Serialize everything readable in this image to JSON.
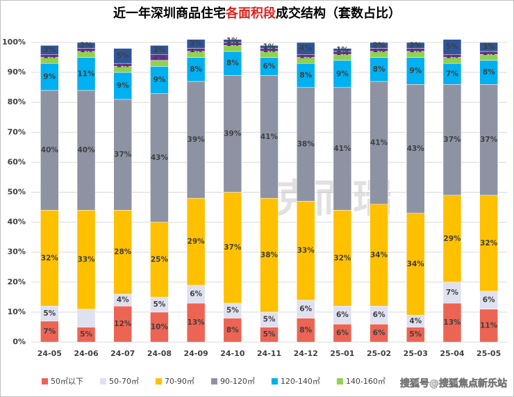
{
  "chart_data": {
    "type": "stacked_bar",
    "title": [
      {
        "text": "近一年深圳商品住宅",
        "color": "#000000"
      },
      {
        "text": "各面积段",
        "color": "#e0201b"
      },
      {
        "text": "成交结构（套数占比）",
        "color": "#000000"
      }
    ],
    "categories": [
      "24-05",
      "24-06",
      "24-07",
      "24-08",
      "24-09",
      "24-10",
      "24-11",
      "24-12",
      "25-01",
      "25-02",
      "25-03",
      "25-04",
      "25-05"
    ],
    "ylim": [
      0,
      100
    ],
    "yticks": [
      {
        "value": 0,
        "label": "0%"
      },
      {
        "value": 10,
        "label": "10%"
      },
      {
        "value": 20,
        "label": "20%"
      },
      {
        "value": 30,
        "label": "30%"
      },
      {
        "value": 40,
        "label": "40%"
      },
      {
        "value": 50,
        "label": "50%"
      },
      {
        "value": 60,
        "label": "60%"
      },
      {
        "value": 70,
        "label": "70%"
      },
      {
        "value": 80,
        "label": "80%"
      },
      {
        "value": 90,
        "label": "90%"
      },
      {
        "value": 100,
        "label": "100%"
      }
    ],
    "grid": true,
    "series": [
      {
        "name": "50㎡以下",
        "color": "#ec6453",
        "values": [
          7,
          5,
          12,
          10,
          13,
          8,
          5,
          8,
          6,
          6,
          5,
          13,
          11
        ],
        "value_labels": [
          "7%",
          "5%",
          "12%",
          "10%",
          "13%",
          "8%",
          "5%",
          "8%",
          "6%",
          "6%",
          "5%",
          "13%",
          "11%"
        ]
      },
      {
        "name": "50-70㎡",
        "color": "#dfe0f0",
        "values": [
          5,
          6,
          4,
          5,
          6,
          5,
          5,
          6,
          6,
          6,
          4,
          7,
          6
        ],
        "value_labels": [
          "5%",
          null,
          "4%",
          "5%",
          "6%",
          "5%",
          "5%",
          "6%",
          "6%",
          "6%",
          "4%",
          "7%",
          "6%"
        ]
      },
      {
        "name": "70-90㎡",
        "color": "#ffc000",
        "values": [
          32,
          33,
          28,
          25,
          29,
          37,
          38,
          33,
          32,
          34,
          34,
          29,
          32
        ],
        "value_labels": [
          "32%",
          "33%",
          "28%",
          "25%",
          "29%",
          "37%",
          "38%",
          "33%",
          "32%",
          "34%",
          "34%",
          "29%",
          "32%"
        ]
      },
      {
        "name": "90-120㎡",
        "color": "#8e93a4",
        "values": [
          40,
          40,
          37,
          43,
          39,
          39,
          41,
          38,
          41,
          41,
          43,
          37,
          37
        ],
        "value_labels": [
          "40%",
          "40%",
          "37%",
          "43%",
          "39%",
          "39%",
          "41%",
          "38%",
          "41%",
          "41%",
          "43%",
          "37%",
          "37%"
        ]
      },
      {
        "name": "120-140㎡",
        "color": "#00b0f0",
        "values": [
          9,
          11,
          9,
          9,
          8,
          8,
          6,
          8,
          9,
          8,
          9,
          7,
          8
        ],
        "value_labels": [
          "9%",
          "11%",
          "9%",
          "9%",
          "8%",
          "8%",
          "6%",
          "8%",
          "9%",
          "8%",
          "9%",
          "7%",
          "8%"
        ]
      },
      {
        "name": "140-160㎡",
        "color": "#92d050",
        "values": [
          2,
          2,
          2,
          2,
          2,
          2,
          2,
          2,
          2,
          2,
          2,
          2,
          2
        ]
      },
      {
        "color": "#7030a0",
        "values": [
          1,
          1,
          1,
          2,
          1,
          1,
          1,
          1,
          1,
          1,
          1,
          1,
          1
        ],
        "value_labels": [
          "1%",
          "1%",
          "1%",
          "2%",
          "1%",
          "1%",
          "1%",
          "1%",
          "1%",
          "1%",
          "1%",
          "1%",
          "1%"
        ]
      },
      {
        "color": "#2f5597",
        "values": [
          3,
          2,
          5,
          3,
          3,
          1,
          1,
          4,
          1,
          2,
          2,
          5,
          3
        ],
        "value_labels": [
          "3%",
          "2%",
          "5%",
          "3%",
          "3%",
          "1%",
          "1%",
          "4%",
          "1%",
          "2%",
          "2%",
          "5%",
          "3%"
        ]
      }
    ],
    "watermark": "克而瑞",
    "source_note": "搜狐号@搜狐焦点新乐站"
  }
}
